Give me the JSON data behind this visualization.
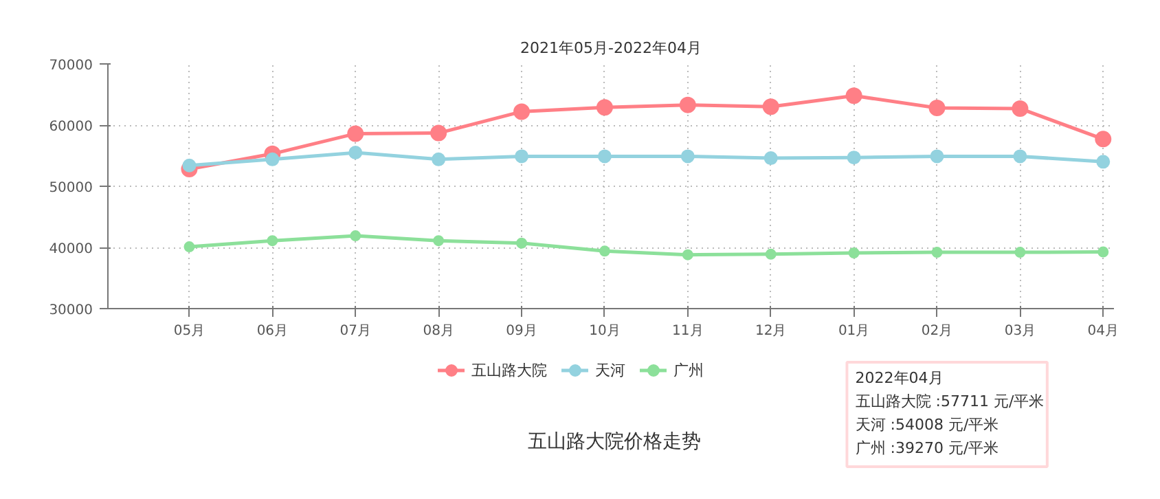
{
  "chart_data": {
    "type": "line",
    "title": "2021年05月-2022年04月",
    "subtitle": "五山路大院价格走势",
    "categories": [
      "05月",
      "06月",
      "07月",
      "08月",
      "09月",
      "10月",
      "11月",
      "12月",
      "01月",
      "02月",
      "03月",
      "04月"
    ],
    "series": [
      {
        "name": "五山路大院",
        "color": "#ff7f86",
        "values": [
          52800,
          55300,
          58600,
          58700,
          62200,
          62900,
          63300,
          63000,
          64800,
          62800,
          62700,
          57711
        ]
      },
      {
        "name": "天河",
        "color": "#93d2df",
        "values": [
          53400,
          54400,
          55500,
          54400,
          54900,
          54900,
          54900,
          54600,
          54700,
          54900,
          54900,
          54008
        ]
      },
      {
        "name": "广州",
        "color": "#8ce09a",
        "values": [
          40100,
          41100,
          41900,
          41100,
          40700,
          39400,
          38800,
          38900,
          39100,
          39200,
          39200,
          39270
        ]
      }
    ],
    "ylim": [
      30000,
      70000
    ],
    "yticks": [
      30000,
      40000,
      50000,
      60000,
      70000
    ],
    "grid": true,
    "legend": "bottom",
    "marker": "circle",
    "line_style": "solid",
    "annotations": [
      "2022年04月",
      "五山路大院 :57711 元/平米",
      "天河 :54008 元/平米",
      "广州 :39270 元/平米"
    ]
  }
}
